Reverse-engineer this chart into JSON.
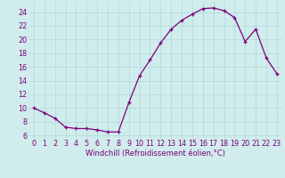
{
  "x": [
    0,
    1,
    2,
    3,
    4,
    5,
    6,
    7,
    8,
    9,
    10,
    11,
    12,
    13,
    14,
    15,
    16,
    17,
    18,
    19,
    20,
    21,
    22,
    23
  ],
  "y": [
    10,
    9.3,
    8.5,
    7.2,
    7.0,
    7.0,
    6.8,
    6.5,
    6.5,
    10.8,
    14.7,
    17.0,
    19.5,
    21.5,
    22.8,
    23.7,
    24.5,
    24.6,
    24.2,
    23.2,
    19.7,
    21.5,
    17.3,
    15.0
  ],
  "line_color": "#7b007b",
  "marker_color": "#7b007b",
  "bg_color": "#d0ecec",
  "grid_color": "#b0d8d8",
  "xlabel": "Windchill (Refroidissement éolien,°C)",
  "xlim": [
    -0.5,
    23.5
  ],
  "ylim": [
    5.5,
    25.5
  ],
  "yticks": [
    6,
    8,
    10,
    12,
    14,
    16,
    18,
    20,
    22,
    24
  ],
  "xticks": [
    0,
    1,
    2,
    3,
    4,
    5,
    6,
    7,
    8,
    9,
    10,
    11,
    12,
    13,
    14,
    15,
    16,
    17,
    18,
    19,
    20,
    21,
    22,
    23
  ],
  "xlabel_fontsize": 6.0,
  "tick_fontsize": 5.8,
  "label_color": "#7b007b",
  "linewidth": 0.9,
  "markersize": 3.0
}
